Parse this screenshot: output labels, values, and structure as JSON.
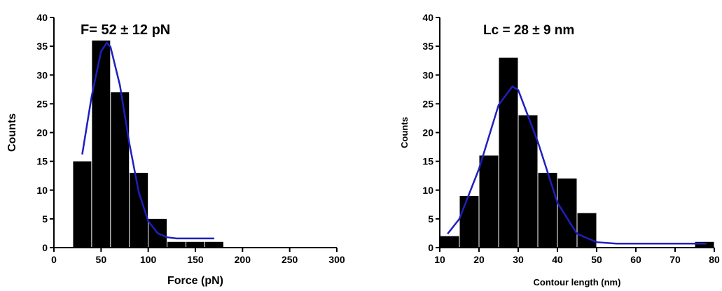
{
  "chart_data": [
    {
      "type": "histogram",
      "title": "F= 52 ± 12 pN",
      "x_label": "Force (pN)",
      "y_label": "Counts",
      "bins": [
        20,
        40,
        60,
        80,
        100,
        120,
        140,
        160,
        180
      ],
      "values": [
        15,
        36,
        27,
        13,
        5,
        1,
        1,
        1
      ],
      "color": "#000000",
      "curve": {
        "color": "#1f1fbf",
        "x": [
          30,
          40,
          50,
          56,
          60,
          70,
          80,
          90,
          100,
          110,
          120,
          130,
          140,
          150,
          160,
          170
        ],
        "values": [
          16.2,
          26.3,
          34.1,
          35.6,
          34.9,
          28.2,
          18.1,
          9.6,
          4.6,
          2.5,
          1.8,
          1.6,
          1.6,
          1.6,
          1.6,
          1.6
        ]
      },
      "xlim": [
        0,
        300
      ],
      "xticks": [
        0,
        50,
        100,
        150,
        200,
        250,
        300
      ],
      "ylim": [
        0,
        40
      ],
      "yticks": [
        0,
        5,
        10,
        15,
        20,
        25,
        30,
        35,
        40
      ]
    },
    {
      "type": "histogram",
      "title": "Lc = 28 ± 9 nm",
      "x_label": "Contour length (nm)",
      "y_label": "Counts",
      "bins": [
        10,
        15,
        20,
        25,
        30,
        35,
        40,
        45,
        50,
        55,
        60,
        65,
        70,
        75,
        80
      ],
      "values": [
        2,
        9,
        16,
        33,
        23,
        13,
        12,
        6,
        0,
        0,
        0,
        0,
        0,
        1
      ],
      "color": "#000000",
      "curve": {
        "color": "#1f1fbf",
        "x": [
          12,
          15,
          20,
          25,
          28.5,
          30,
          35,
          40,
          45,
          50,
          55,
          60,
          65,
          70,
          75,
          78
        ],
        "values": [
          2.4,
          5.0,
          13.7,
          24.8,
          28.0,
          27.4,
          18.4,
          7.8,
          2.4,
          0.95,
          0.7,
          0.7,
          0.7,
          0.7,
          0.7,
          0.7
        ]
      },
      "xlim": [
        10,
        80
      ],
      "xticks": [
        10,
        20,
        30,
        40,
        50,
        60,
        70,
        80
      ],
      "ylim": [
        0,
        40
      ],
      "yticks": [
        0,
        5,
        10,
        15,
        20,
        25,
        30,
        35,
        40
      ]
    }
  ]
}
